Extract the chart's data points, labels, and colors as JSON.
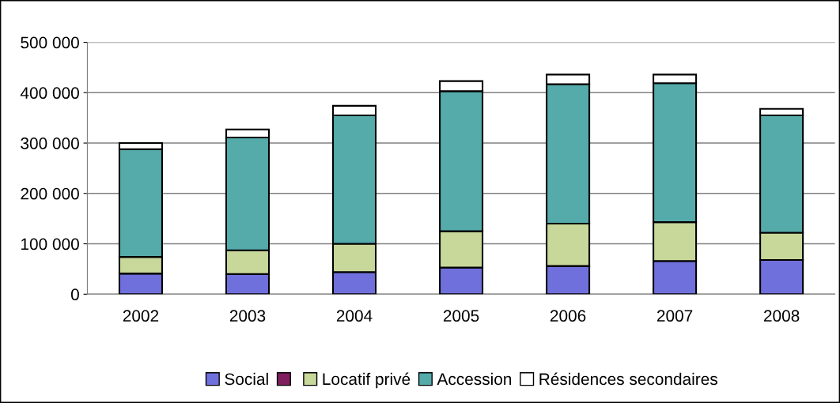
{
  "chart_data": {
    "type": "bar",
    "stacked": true,
    "categories": [
      "2002",
      "2003",
      "2004",
      "2005",
      "2006",
      "2007",
      "2008"
    ],
    "series": [
      {
        "name": "Social",
        "color": "#7070dd",
        "values": [
          41000,
          40000,
          44000,
          53000,
          56000,
          66000,
          68000
        ]
      },
      {
        "color": "#7f1f5f",
        "values": [
          null,
          null,
          null,
          null,
          null,
          null,
          null
        ]
      },
      {
        "name": "Locatif privé",
        "color": "#c8d89a",
        "values": [
          33000,
          47000,
          56000,
          72000,
          84000,
          77000,
          54000
        ]
      },
      {
        "name": "Accession",
        "color": "#55aaaa",
        "values": [
          214000,
          224000,
          255000,
          278000,
          277000,
          276000,
          233000
        ]
      },
      {
        "name": "Résidences secondaires",
        "color": "#ffffff",
        "values": [
          12000,
          16000,
          19000,
          20000,
          19000,
          17000,
          13000
        ]
      }
    ],
    "ylim": [
      0,
      500000
    ],
    "yticks": [
      {
        "value": 0,
        "label": "0"
      },
      {
        "value": 100000,
        "label": "100 000"
      },
      {
        "value": 200000,
        "label": "200 000"
      },
      {
        "value": 300000,
        "label": "300 000"
      },
      {
        "value": 400000,
        "label": "400 000"
      },
      {
        "value": 500000,
        "label": "500 000"
      }
    ],
    "grid": "y",
    "legend": "bottom"
  }
}
